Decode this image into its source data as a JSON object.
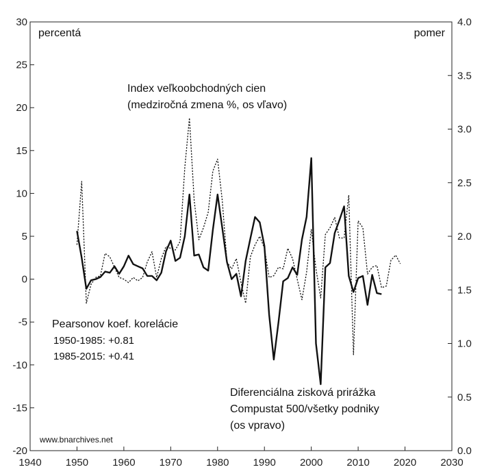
{
  "chart_data": {
    "type": "line",
    "x_axis": {
      "min": 1940,
      "max": 2030,
      "ticks": [
        1940,
        1950,
        1960,
        1970,
        1980,
        1990,
        2000,
        2010,
        2020,
        2030
      ]
    },
    "y_left": {
      "label": "percentá",
      "min": -20,
      "max": 30,
      "ticks": [
        -20,
        -15,
        -10,
        -5,
        0,
        5,
        10,
        15,
        20,
        25,
        30
      ]
    },
    "y_right": {
      "label": "pomer",
      "min": 0.0,
      "max": 4.0,
      "ticks": [
        "0.0",
        "0.5",
        "1.0",
        "1.5",
        "2.0",
        "2.5",
        "3.0",
        "3.5",
        "4.0"
      ]
    },
    "series": [
      {
        "name_lines": [
          "Index veľkoobchodných cien",
          "(medziročná zmena %, os vľavo)"
        ],
        "axis": "left",
        "style": "dotted",
        "x": [
          1950,
          1951,
          1952,
          1953,
          1954,
          1955,
          1956,
          1957,
          1958,
          1959,
          1960,
          1961,
          1962,
          1963,
          1964,
          1965,
          1966,
          1967,
          1968,
          1969,
          1970,
          1971,
          1972,
          1973,
          1974,
          1975,
          1976,
          1977,
          1978,
          1979,
          1980,
          1981,
          1982,
          1983,
          1984,
          1985,
          1986,
          1987,
          1988,
          1989,
          1990,
          1991,
          1992,
          1993,
          1994,
          1995,
          1996,
          1997,
          1998,
          1999,
          2000,
          2001,
          2002,
          2003,
          2004,
          2005,
          2006,
          2007,
          2008,
          2009,
          2010,
          2011,
          2012,
          2013,
          2014,
          2015,
          2016,
          2017,
          2018,
          2019
        ],
        "y": [
          4.0,
          11.4,
          -2.8,
          -0.6,
          0.2,
          0.4,
          3.0,
          2.6,
          1.4,
          0.2,
          0.0,
          -0.4,
          0.2,
          -0.2,
          0.2,
          2.0,
          3.2,
          0.2,
          2.4,
          3.8,
          3.6,
          3.4,
          4.4,
          13.0,
          18.8,
          9.2,
          4.6,
          6.0,
          7.8,
          12.6,
          14.0,
          9.2,
          2.0,
          1.2,
          2.4,
          -0.4,
          -2.8,
          2.6,
          4.0,
          5.0,
          3.6,
          0.2,
          0.4,
          1.4,
          1.2,
          3.6,
          2.4,
          0.0,
          -2.4,
          0.8,
          5.8,
          1.2,
          -2.2,
          5.2,
          6.0,
          7.2,
          4.8,
          4.8,
          9.8,
          -8.8,
          6.8,
          6.0,
          0.6,
          1.4,
          1.6,
          -1.0,
          -0.8,
          2.2,
          2.8,
          1.8
        ]
      },
      {
        "name_lines": [
          "Diferenciálna zisková prirážka",
          "Compustat 500/všetky podniky",
          "(os vpravo)"
        ],
        "axis": "right",
        "style": "solid",
        "x": [
          1950,
          1951,
          1952,
          1953,
          1954,
          1955,
          1956,
          1957,
          1958,
          1959,
          1960,
          1961,
          1962,
          1963,
          1964,
          1965,
          1966,
          1967,
          1968,
          1969,
          1970,
          1971,
          1972,
          1973,
          1974,
          1975,
          1976,
          1977,
          1978,
          1979,
          1980,
          1981,
          1982,
          1983,
          1984,
          1985,
          1986,
          1987,
          1988,
          1989,
          1990,
          1991,
          1992,
          1993,
          1994,
          1995,
          1996,
          1997,
          1998,
          1999,
          2000,
          2001,
          2002,
          2003,
          2004,
          2005,
          2006,
          2007,
          2008,
          2009,
          2010,
          2011,
          2012,
          2013,
          2014,
          2015
        ],
        "y": [
          2.05,
          1.8,
          1.51,
          1.59,
          1.6,
          1.62,
          1.67,
          1.66,
          1.72,
          1.65,
          1.72,
          1.82,
          1.74,
          1.72,
          1.7,
          1.63,
          1.63,
          1.59,
          1.66,
          1.86,
          1.96,
          1.77,
          1.8,
          2.0,
          2.39,
          1.82,
          1.83,
          1.71,
          1.68,
          2.06,
          2.39,
          2.08,
          1.76,
          1.6,
          1.65,
          1.44,
          1.77,
          1.98,
          2.18,
          2.13,
          1.91,
          1.27,
          0.85,
          1.2,
          1.58,
          1.61,
          1.71,
          1.64,
          1.97,
          2.18,
          2.73,
          1.0,
          0.62,
          1.71,
          1.75,
          2.03,
          2.15,
          2.28,
          1.63,
          1.48,
          1.61,
          1.63,
          1.36,
          1.64,
          1.47,
          1.46
        ]
      }
    ],
    "annotations": {
      "corr_title": "Pearsonov koef. korelácie",
      "corr_lines": [
        "1950-1985: +0.81",
        "1985-2015: +0.41"
      ],
      "source": "www.bnarchives.net"
    },
    "grid": false
  }
}
